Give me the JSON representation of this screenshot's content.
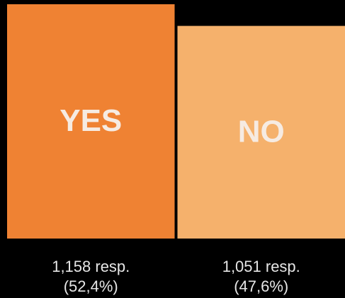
{
  "chart_data": {
    "type": "bar",
    "categories": [
      "YES",
      "NO"
    ],
    "values": [
      1158,
      1051
    ],
    "value_labels": [
      "1,158 resp.",
      "1,051 resp."
    ],
    "shares": [
      52.4,
      47.6
    ],
    "share_labels": [
      "(52,4%)",
      "(47,6%)"
    ],
    "colors": [
      "#ef8233",
      "#f5b16c"
    ]
  }
}
